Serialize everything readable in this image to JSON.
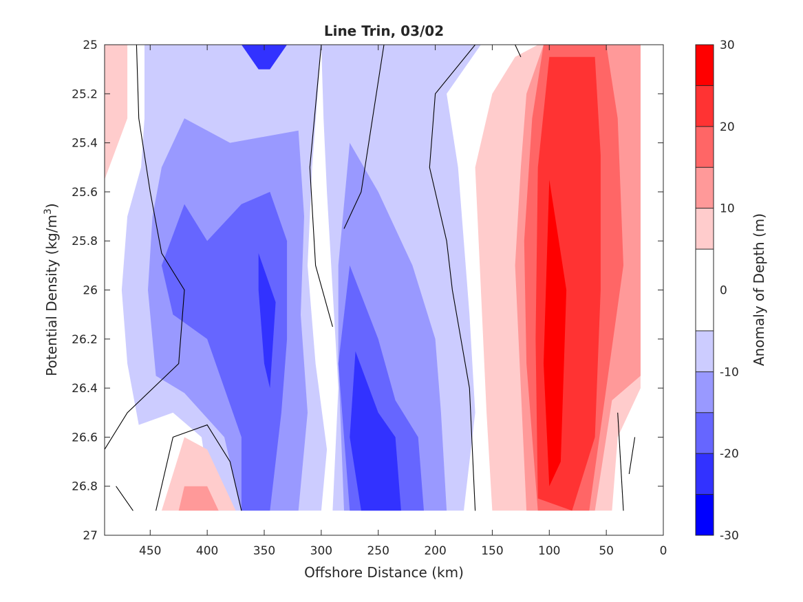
{
  "chart_data": {
    "type": "heatmap",
    "title": "Line Trin, 03/02",
    "xlabel": "Offshore Distance (km)",
    "ylabel_main": "Potential Density (kg/m",
    "ylabel_sup": "3",
    "ylabel_close": ")",
    "xlim": [
      490,
      0
    ],
    "x_reversed": true,
    "ylim": [
      25,
      27
    ],
    "y_reversed": true,
    "xticks": [
      450,
      400,
      350,
      300,
      250,
      200,
      150,
      100,
      50,
      0
    ],
    "xtick_labels": [
      "450",
      "400",
      "350",
      "300",
      "250",
      "200",
      "150",
      "100",
      "50",
      "0"
    ],
    "yticks": [
      25,
      25.2,
      25.4,
      25.6,
      25.8,
      26,
      26.2,
      26.4,
      26.6,
      26.8,
      27
    ],
    "ytick_labels": [
      "25",
      "25.2",
      "25.4",
      "25.6",
      "25.8",
      "26",
      "26.2",
      "26.4",
      "26.6",
      "26.8",
      "27"
    ],
    "data_bottom_density": 26.9,
    "colorbar": {
      "label": "Anomaly of Depth (m)",
      "limits": [
        -30,
        30
      ],
      "ticks": [
        30,
        20,
        10,
        0,
        -10,
        -20,
        -30
      ],
      "tick_labels": [
        "30",
        "20",
        "10",
        "0",
        "-10",
        "-20",
        "-30"
      ],
      "levels": [
        -30,
        -25,
        -20,
        -15,
        -10,
        -5,
        5,
        10,
        15,
        20,
        25,
        30
      ],
      "colors": [
        "#0000ff",
        "#3232ff",
        "#6666ff",
        "#9999ff",
        "#ccccff",
        "#ffffff",
        "#ffcccc",
        "#ff9999",
        "#ff6666",
        "#ff3333",
        "#ff0000"
      ]
    },
    "grid": false,
    "contour_level_drawn": 0,
    "features": [
      {
        "name": "offshore-positive-corner",
        "level": 5,
        "points": [
          [
            490,
            25
          ],
          [
            470,
            25
          ],
          [
            470,
            25.3
          ],
          [
            490,
            25.55
          ]
        ]
      },
      {
        "name": "anomaly-band-neg5-a",
        "level": -5,
        "points": [
          [
            455,
            25
          ],
          [
            300,
            25
          ],
          [
            308,
            25.5
          ],
          [
            312,
            25.9
          ],
          [
            305,
            26.3
          ],
          [
            295,
            26.65
          ],
          [
            300,
            26.9
          ],
          [
            395,
            26.9
          ],
          [
            405,
            26.6
          ],
          [
            430,
            26.5
          ],
          [
            460,
            26.55
          ],
          [
            470,
            26.3
          ],
          [
            475,
            26
          ],
          [
            470,
            25.7
          ],
          [
            458,
            25.5
          ],
          [
            455,
            25.3
          ]
        ]
      },
      {
        "name": "anomaly-band-neg5-b",
        "level": -5,
        "points": [
          [
            300,
            25
          ],
          [
            160,
            25
          ],
          [
            190,
            25.2
          ],
          [
            180,
            25.5
          ],
          [
            175,
            25.8
          ],
          [
            170,
            26.1
          ],
          [
            165,
            26.5
          ],
          [
            175,
            26.9
          ],
          [
            290,
            26.9
          ],
          [
            285,
            26.4
          ],
          [
            290,
            26
          ],
          [
            295,
            25.6
          ],
          [
            298,
            25.3
          ]
        ]
      },
      {
        "name": "anomaly-band-neg10-a",
        "level": -10,
        "points": [
          [
            440,
            25.5
          ],
          [
            420,
            25.3
          ],
          [
            380,
            25.4
          ],
          [
            320,
            25.35
          ],
          [
            315,
            25.7
          ],
          [
            318,
            26.1
          ],
          [
            312,
            26.5
          ],
          [
            320,
            26.9
          ],
          [
            370,
            26.9
          ],
          [
            385,
            26.6
          ],
          [
            420,
            26.42
          ],
          [
            445,
            26.35
          ],
          [
            452,
            26
          ],
          [
            448,
            25.7
          ]
        ]
      },
      {
        "name": "anomaly-band-neg15-a",
        "level": -15,
        "points": [
          [
            420,
            25.65
          ],
          [
            400,
            25.8
          ],
          [
            370,
            25.65
          ],
          [
            345,
            25.6
          ],
          [
            330,
            25.8
          ],
          [
            330,
            26.2
          ],
          [
            335,
            26.5
          ],
          [
            345,
            26.9
          ],
          [
            370,
            26.9
          ],
          [
            370,
            26.6
          ],
          [
            400,
            26.2
          ],
          [
            430,
            26.1
          ],
          [
            440,
            25.9
          ]
        ]
      },
      {
        "name": "anomaly-band-neg20-a",
        "level": -20,
        "points": [
          [
            355,
            25.85
          ],
          [
            340,
            26.05
          ],
          [
            345,
            26.4
          ],
          [
            350,
            26.3
          ],
          [
            355,
            26
          ]
        ]
      },
      {
        "name": "anomaly-band-neg10-b",
        "level": -10,
        "points": [
          [
            275,
            25.4
          ],
          [
            285,
            25.9
          ],
          [
            285,
            26.3
          ],
          [
            280,
            26.9
          ],
          [
            190,
            26.9
          ],
          [
            195,
            26.5
          ],
          [
            200,
            26.2
          ],
          [
            220,
            25.9
          ],
          [
            250,
            25.6
          ]
        ]
      },
      {
        "name": "anomaly-band-neg15-b",
        "level": -15,
        "points": [
          [
            275,
            25.9
          ],
          [
            285,
            26.3
          ],
          [
            275,
            26.9
          ],
          [
            210,
            26.9
          ],
          [
            215,
            26.6
          ],
          [
            235,
            26.45
          ],
          [
            250,
            26.2
          ]
        ]
      },
      {
        "name": "anomaly-band-neg20-b",
        "level": -20,
        "points": [
          [
            270,
            26.25
          ],
          [
            275,
            26.6
          ],
          [
            265,
            26.9
          ],
          [
            230,
            26.9
          ],
          [
            235,
            26.6
          ],
          [
            250,
            26.5
          ]
        ]
      },
      {
        "name": "anomaly-band-neg20-top",
        "level": -20,
        "points": [
          [
            370,
            25
          ],
          [
            330,
            25
          ],
          [
            345,
            25.1
          ],
          [
            355,
            25.1
          ]
        ]
      },
      {
        "name": "anomaly-band-pos5-main",
        "level": 5,
        "points": [
          [
            165,
            25.5
          ],
          [
            150,
            25.2
          ],
          [
            130,
            25.05
          ],
          [
            110,
            25
          ],
          [
            20,
            25
          ],
          [
            20,
            26.4
          ],
          [
            40,
            26.6
          ],
          [
            45,
            26.9
          ],
          [
            150,
            26.9
          ],
          [
            155,
            26.5
          ],
          [
            160,
            26.0
          ]
        ]
      },
      {
        "name": "anomaly-band-pos10-main",
        "level": 10,
        "points": [
          [
            120,
            25.2
          ],
          [
            105,
            25
          ],
          [
            20,
            25
          ],
          [
            20,
            26.35
          ],
          [
            45,
            26.45
          ],
          [
            60,
            26.9
          ],
          [
            120,
            26.9
          ],
          [
            125,
            26.4
          ],
          [
            130,
            25.9
          ],
          [
            125,
            25.5
          ]
        ]
      },
      {
        "name": "anomaly-band-pos15-main",
        "level": 15,
        "points": [
          [
            115,
            25.3
          ],
          [
            105,
            25
          ],
          [
            50,
            25
          ],
          [
            40,
            25.3
          ],
          [
            35,
            25.9
          ],
          [
            50,
            26.4
          ],
          [
            65,
            26.9
          ],
          [
            110,
            26.9
          ],
          [
            120,
            26.3
          ],
          [
            122,
            25.8
          ]
        ]
      },
      {
        "name": "anomaly-band-pos20-main",
        "level": 20,
        "points": [
          [
            110,
            25.5
          ],
          [
            100,
            25.05
          ],
          [
            60,
            25.05
          ],
          [
            55,
            25.45
          ],
          [
            55,
            26
          ],
          [
            60,
            26.6
          ],
          [
            80,
            26.9
          ],
          [
            110,
            26.85
          ],
          [
            112,
            26.2
          ]
        ]
      },
      {
        "name": "anomaly-band-pos25-main",
        "level": 25,
        "points": [
          [
            100,
            25.55
          ],
          [
            90,
            25.85
          ],
          [
            85,
            26
          ],
          [
            90,
            26.7
          ],
          [
            100,
            26.8
          ],
          [
            105,
            26.3
          ]
        ]
      },
      {
        "name": "anomaly-band-pos5-deep",
        "level": 5,
        "points": [
          [
            440,
            26.9
          ],
          [
            420,
            26.6
          ],
          [
            400,
            26.65
          ],
          [
            375,
            26.9
          ]
        ]
      },
      {
        "name": "anomaly-band-pos10-deep",
        "level": 10,
        "points": [
          [
            425,
            26.9
          ],
          [
            420,
            26.8
          ],
          [
            400,
            26.8
          ],
          [
            390,
            26.9
          ]
        ]
      }
    ]
  }
}
